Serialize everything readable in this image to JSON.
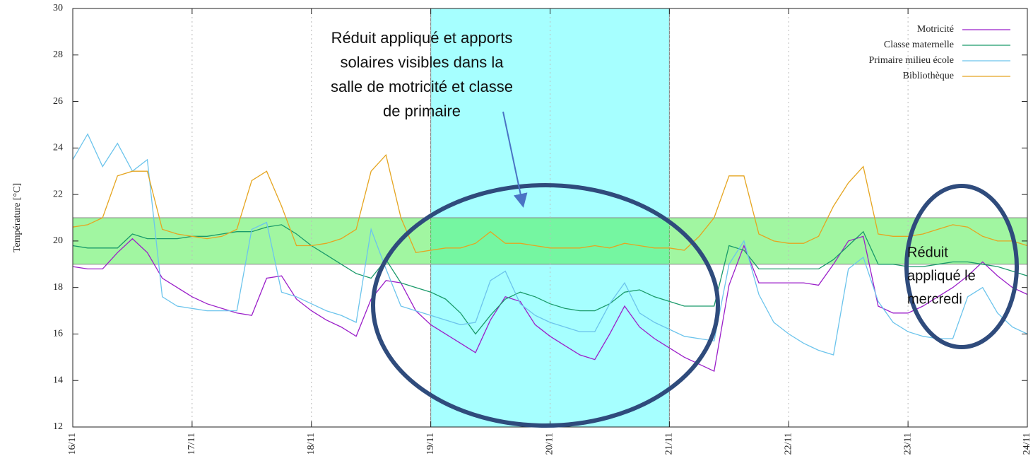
{
  "chart_data": {
    "type": "line",
    "ylabel": "Température [°C]",
    "ylabel_color": "#a020a0",
    "xlim": [
      0,
      8
    ],
    "ylim": [
      12,
      30
    ],
    "xticks": [
      {
        "value": 0,
        "label": "16/11"
      },
      {
        "value": 1,
        "label": "17/11"
      },
      {
        "value": 2,
        "label": "18/11"
      },
      {
        "value": 3,
        "label": "19/11"
      },
      {
        "value": 4,
        "label": "20/11"
      },
      {
        "value": 5,
        "label": "21/11"
      },
      {
        "value": 6,
        "label": "22/11"
      },
      {
        "value": 7,
        "label": "23/11"
      },
      {
        "value": 8,
        "label": "24/11"
      }
    ],
    "yticks": [
      12,
      14,
      16,
      18,
      20,
      22,
      24,
      26,
      28,
      30
    ],
    "grid": "x",
    "legend": "upper right",
    "y_bands": [
      {
        "range": [
          19,
          21
        ],
        "color": "#44ee44"
      }
    ],
    "x_bands": [
      {
        "range": [
          3,
          5
        ],
        "color": "#00ffff"
      }
    ],
    "annotations": [
      {
        "lines": [
          "Réduit appliqué et apports",
          "solaires visibles dans la",
          "salle de motricité et classe",
          "de primaire"
        ]
      },
      {
        "lines": [
          "Réduit",
          "appliqué le",
          "mercredi"
        ]
      }
    ],
    "x": [
      0,
      0.125,
      0.25,
      0.375,
      0.5,
      0.625,
      0.75,
      0.875,
      1,
      1.125,
      1.25,
      1.375,
      1.5,
      1.625,
      1.75,
      1.875,
      2,
      2.125,
      2.25,
      2.375,
      2.5,
      2.625,
      2.75,
      2.875,
      3,
      3.125,
      3.25,
      3.375,
      3.5,
      3.625,
      3.75,
      3.875,
      4,
      4.125,
      4.25,
      4.375,
      4.5,
      4.625,
      4.75,
      4.875,
      5,
      5.125,
      5.25,
      5.375,
      5.5,
      5.625,
      5.75,
      5.875,
      6,
      6.125,
      6.25,
      6.375,
      6.5,
      6.625,
      6.75,
      6.875,
      7,
      7.125,
      7.25,
      7.375,
      7.5,
      7.625,
      7.75,
      7.875,
      8
    ],
    "series": [
      {
        "name": "Motricité",
        "color": "#9b1fc9",
        "values": [
          18.9,
          18.8,
          18.8,
          19.5,
          20.1,
          19.5,
          18.4,
          18.0,
          17.6,
          17.3,
          17.1,
          16.9,
          16.8,
          18.4,
          18.5,
          17.5,
          17.0,
          16.6,
          16.3,
          15.9,
          17.5,
          18.3,
          18.2,
          17.0,
          16.4,
          16.0,
          15.6,
          15.2,
          16.6,
          17.6,
          17.4,
          16.4,
          15.9,
          15.5,
          15.1,
          14.9,
          16.0,
          17.2,
          16.3,
          15.8,
          15.4,
          15.0,
          14.7,
          14.4,
          18.1,
          19.8,
          18.2,
          18.2,
          18.2,
          18.2,
          18.1,
          19.0,
          20.0,
          20.2,
          17.2,
          16.9,
          16.9,
          17.2,
          17.6,
          18.0,
          18.5,
          19.1,
          18.5,
          18.0,
          17.7
        ]
      },
      {
        "name": "Classe maternelle",
        "color": "#1a9a6a",
        "values": [
          19.8,
          19.7,
          19.7,
          19.7,
          20.3,
          20.1,
          20.1,
          20.1,
          20.2,
          20.2,
          20.3,
          20.4,
          20.4,
          20.6,
          20.7,
          20.3,
          19.8,
          19.4,
          19.0,
          18.6,
          18.4,
          19.2,
          18.2,
          18.0,
          17.8,
          17.5,
          16.9,
          16.0,
          16.8,
          17.5,
          17.8,
          17.6,
          17.3,
          17.1,
          17.0,
          17.0,
          17.3,
          17.8,
          17.9,
          17.6,
          17.4,
          17.2,
          17.2,
          17.2,
          19.8,
          19.6,
          18.8,
          18.8,
          18.8,
          18.8,
          18.8,
          19.2,
          19.8,
          20.4,
          19.0,
          19.0,
          18.9,
          18.9,
          19.0,
          19.1,
          19.1,
          19.0,
          18.9,
          18.7,
          18.5
        ]
      },
      {
        "name": "Primaire milieu école",
        "color": "#6cc4ec",
        "values": [
          23.5,
          24.6,
          23.2,
          24.2,
          23.0,
          23.5,
          17.6,
          17.2,
          17.1,
          17.0,
          17.0,
          17.0,
          20.5,
          20.8,
          17.8,
          17.6,
          17.3,
          17.0,
          16.8,
          16.5,
          20.5,
          18.8,
          17.2,
          17.0,
          16.8,
          16.6,
          16.4,
          16.5,
          18.3,
          18.7,
          17.3,
          16.8,
          16.5,
          16.3,
          16.1,
          16.1,
          17.3,
          18.2,
          16.9,
          16.5,
          16.2,
          15.9,
          15.8,
          15.7,
          19.0,
          20.0,
          17.7,
          16.5,
          16.0,
          15.6,
          15.3,
          15.1,
          18.8,
          19.3,
          17.4,
          16.5,
          16.1,
          15.9,
          15.8,
          15.8,
          17.6,
          18.0,
          16.9,
          16.3,
          16.0
        ]
      },
      {
        "name": "Bibliothèque",
        "color": "#e5a520",
        "values": [
          20.6,
          20.7,
          21.0,
          22.8,
          23.0,
          23.0,
          20.5,
          20.3,
          20.2,
          20.1,
          20.2,
          20.5,
          22.6,
          23.0,
          21.5,
          19.8,
          19.8,
          19.9,
          20.1,
          20.5,
          23.0,
          23.7,
          21.0,
          19.5,
          19.6,
          19.7,
          19.7,
          19.9,
          20.4,
          19.9,
          19.9,
          19.8,
          19.7,
          19.7,
          19.7,
          19.8,
          19.7,
          19.9,
          19.8,
          19.7,
          19.7,
          19.6,
          20.2,
          21.0,
          22.8,
          22.8,
          20.3,
          20.0,
          19.9,
          19.9,
          20.2,
          21.5,
          22.5,
          23.2,
          20.3,
          20.2,
          20.2,
          20.3,
          20.5,
          20.7,
          20.6,
          20.2,
          20.0,
          20.0,
          19.8
        ]
      }
    ]
  }
}
